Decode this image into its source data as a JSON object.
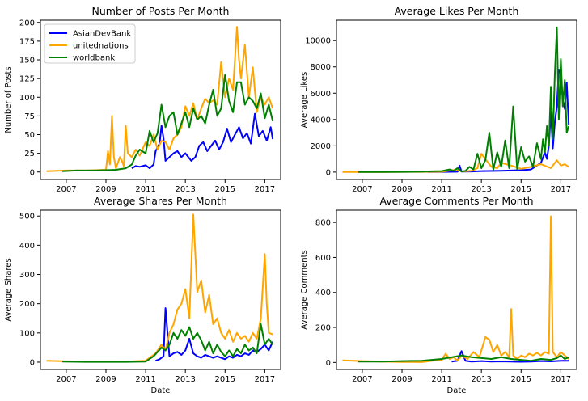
{
  "chart_data": [
    {
      "id": "posts",
      "type": "line",
      "title": "Number of Posts Per Month",
      "xlabel": "",
      "ylabel": "Number of Posts",
      "xlim": [
        2005.7,
        2017.8
      ],
      "ylim": [
        -10,
        203
      ],
      "xticks": [
        2007,
        2009,
        2011,
        2013,
        2015,
        2017
      ],
      "yticks": [
        0,
        25,
        50,
        75,
        100,
        125,
        150,
        175,
        200
      ],
      "legend": "top-left",
      "series": [
        {
          "name": "AsianDevBank",
          "color": "#0000ff",
          "x": [
            2010.3,
            2010.5,
            2010.7,
            2011.0,
            2011.2,
            2011.4,
            2011.5,
            2011.7,
            2011.8,
            2011.9,
            2012.0,
            2012.2,
            2012.4,
            2012.6,
            2012.8,
            2013.0,
            2013.3,
            2013.5,
            2013.7,
            2013.9,
            2014.1,
            2014.3,
            2014.5,
            2014.7,
            2014.9,
            2015.1,
            2015.3,
            2015.5,
            2015.7,
            2015.9,
            2016.1,
            2016.3,
            2016.5,
            2016.7,
            2016.9,
            2017.1,
            2017.3,
            2017.4
          ],
          "values": [
            5,
            8,
            7,
            9,
            5,
            10,
            28,
            38,
            62,
            45,
            15,
            20,
            25,
            28,
            20,
            25,
            15,
            20,
            35,
            40,
            28,
            35,
            42,
            30,
            40,
            58,
            40,
            50,
            60,
            45,
            52,
            38,
            78,
            48,
            55,
            42,
            60,
            44
          ]
        },
        {
          "name": "unitednations",
          "color": "#ffa500",
          "x": [
            2006.0,
            2007.0,
            2008.0,
            2009.0,
            2009.1,
            2009.2,
            2009.3,
            2009.4,
            2009.5,
            2009.6,
            2009.7,
            2009.8,
            2009.9,
            2010.0,
            2010.1,
            2010.3,
            2010.5,
            2010.7,
            2011.0,
            2011.2,
            2011.4,
            2011.6,
            2011.8,
            2012.0,
            2012.2,
            2012.4,
            2012.6,
            2012.8,
            2013.0,
            2013.2,
            2013.4,
            2013.6,
            2013.8,
            2014.0,
            2014.2,
            2014.4,
            2014.6,
            2014.8,
            2015.0,
            2015.2,
            2015.4,
            2015.6,
            2015.7,
            2015.8,
            2016.0,
            2016.2,
            2016.4,
            2016.6,
            2016.8,
            2017.0,
            2017.2,
            2017.4
          ],
          "values": [
            1,
            2,
            2,
            3,
            28,
            10,
            75,
            20,
            5,
            12,
            20,
            15,
            8,
            62,
            25,
            20,
            30,
            22,
            40,
            35,
            50,
            30,
            42,
            40,
            30,
            45,
            50,
            60,
            88,
            75,
            92,
            70,
            85,
            98,
            92,
            96,
            90,
            147,
            100,
            125,
            110,
            194,
            150,
            125,
            170,
            100,
            140,
            80,
            100,
            90,
            100,
            85
          ]
        },
        {
          "name": "worldbank",
          "color": "#008000",
          "x": [
            2006.8,
            2007.5,
            2008.5,
            2009.5,
            2010.0,
            2010.3,
            2010.5,
            2010.7,
            2011.0,
            2011.2,
            2011.4,
            2011.6,
            2011.8,
            2012.0,
            2012.2,
            2012.4,
            2012.6,
            2012.8,
            2013.0,
            2013.2,
            2013.4,
            2013.6,
            2013.8,
            2014.0,
            2014.2,
            2014.4,
            2014.6,
            2014.8,
            2015.0,
            2015.2,
            2015.4,
            2015.6,
            2015.8,
            2016.0,
            2016.2,
            2016.4,
            2016.6,
            2016.8,
            2017.0,
            2017.2,
            2017.4
          ],
          "values": [
            1,
            2,
            2,
            3,
            5,
            10,
            22,
            30,
            25,
            55,
            40,
            52,
            90,
            60,
            75,
            80,
            50,
            65,
            80,
            60,
            85,
            70,
            75,
            65,
            90,
            110,
            75,
            85,
            130,
            95,
            80,
            120,
            120,
            90,
            100,
            95,
            85,
            105,
            72,
            90,
            68
          ]
        }
      ]
    },
    {
      "id": "likes",
      "type": "line",
      "title": "Average Likes Per Month",
      "xlabel": "",
      "ylabel": "Average Likes",
      "xlim": [
        2005.7,
        2017.8
      ],
      "ylim": [
        -560,
        11550
      ],
      "xticks": [
        2007,
        2009,
        2011,
        2013,
        2015,
        2017
      ],
      "yticks": [
        0,
        2000,
        4000,
        6000,
        8000,
        10000
      ],
      "series": [
        {
          "name": "AsianDevBank",
          "color": "#0000ff",
          "x": [
            2010.3,
            2011.0,
            2011.8,
            2011.9,
            2012.0,
            2012.5,
            2013.0,
            2014.0,
            2015.0,
            2015.5,
            2016.0,
            2016.2,
            2016.3,
            2016.4,
            2016.5,
            2016.6,
            2016.7,
            2016.8,
            2016.9,
            2017.0,
            2017.1,
            2017.2,
            2017.3,
            2017.4
          ],
          "values": [
            10,
            20,
            30,
            500,
            40,
            50,
            80,
            100,
            150,
            200,
            700,
            1500,
            1000,
            2000,
            4600,
            1800,
            3800,
            5000,
            7800,
            7500,
            5500,
            4800,
            6800,
            3600
          ]
        },
        {
          "name": "unitednations",
          "color": "#ffa500",
          "x": [
            2006.0,
            2007.0,
            2008.0,
            2009.0,
            2010.0,
            2011.0,
            2011.8,
            2012.0,
            2012.5,
            2012.8,
            2013.0,
            2013.3,
            2013.5,
            2013.8,
            2014.0,
            2014.5,
            2015.0,
            2015.5,
            2016.0,
            2016.5,
            2016.8,
            2017.0,
            2017.2,
            2017.4
          ],
          "values": [
            5,
            5,
            10,
            15,
            20,
            30,
            200,
            50,
            100,
            300,
            1400,
            800,
            400,
            300,
            700,
            500,
            250,
            400,
            600,
            300,
            900,
            500,
            600,
            400
          ]
        },
        {
          "name": "worldbank",
          "color": "#008000",
          "x": [
            2006.8,
            2008.0,
            2009.0,
            2010.0,
            2010.5,
            2011.0,
            2011.4,
            2011.6,
            2011.8,
            2012.0,
            2012.2,
            2012.4,
            2012.6,
            2012.8,
            2013.0,
            2013.2,
            2013.4,
            2013.6,
            2013.8,
            2014.0,
            2014.2,
            2014.4,
            2014.6,
            2014.8,
            2015.0,
            2015.2,
            2015.4,
            2015.6,
            2015.8,
            2016.0,
            2016.1,
            2016.2,
            2016.3,
            2016.4,
            2016.5,
            2016.6,
            2016.7,
            2016.8,
            2016.9,
            2017.0,
            2017.1,
            2017.2,
            2017.3,
            2017.4
          ],
          "values": [
            10,
            10,
            15,
            30,
            60,
            80,
            200,
            100,
            300,
            50,
            100,
            400,
            200,
            1400,
            300,
            900,
            3000,
            200,
            1500,
            400,
            2400,
            300,
            5000,
            200,
            1900,
            800,
            1200,
            400,
            2200,
            1000,
            2500,
            1500,
            3500,
            2000,
            6500,
            2500,
            7500,
            11000,
            4000,
            8600,
            5000,
            7000,
            3000,
            3500
          ]
        }
      ]
    },
    {
      "id": "shares",
      "type": "line",
      "title": "Average Shares Per Month",
      "xlabel": "Date",
      "ylabel": "Average Shares",
      "xlim": [
        2005.7,
        2017.8
      ],
      "ylim": [
        -25,
        520
      ],
      "xticks": [
        2007,
        2009,
        2011,
        2013,
        2015,
        2017
      ],
      "yticks": [
        0,
        100,
        200,
        300,
        400,
        500
      ],
      "series": [
        {
          "name": "AsianDevBank",
          "color": "#0000ff",
          "x": [
            2011.5,
            2011.7,
            2011.9,
            2012.0,
            2012.2,
            2012.4,
            2012.6,
            2012.8,
            2013.0,
            2013.2,
            2013.4,
            2013.6,
            2013.8,
            2014.0,
            2014.2,
            2014.4,
            2014.6,
            2014.8,
            2015.0,
            2015.2,
            2015.4,
            2015.6,
            2015.8,
            2016.0,
            2016.2,
            2016.4,
            2016.6,
            2016.8,
            2017.0,
            2017.2,
            2017.4
          ],
          "values": [
            5,
            10,
            20,
            185,
            20,
            30,
            35,
            25,
            40,
            80,
            30,
            20,
            15,
            25,
            20,
            15,
            20,
            15,
            10,
            20,
            15,
            25,
            20,
            30,
            25,
            40,
            35,
            45,
            60,
            40,
            70
          ]
        },
        {
          "name": "unitednations",
          "color": "#ffa500",
          "x": [
            2006.0,
            2007.0,
            2008.0,
            2009.0,
            2010.0,
            2011.0,
            2011.5,
            2011.8,
            2012.0,
            2012.2,
            2012.4,
            2012.6,
            2012.8,
            2013.0,
            2013.2,
            2013.4,
            2013.6,
            2013.8,
            2014.0,
            2014.2,
            2014.4,
            2014.6,
            2014.8,
            2015.0,
            2015.2,
            2015.4,
            2015.6,
            2015.8,
            2016.0,
            2016.2,
            2016.4,
            2016.6,
            2016.8,
            2017.0,
            2017.1,
            2017.2,
            2017.4
          ],
          "values": [
            5,
            3,
            2,
            2,
            2,
            5,
            30,
            60,
            40,
            100,
            130,
            180,
            200,
            250,
            150,
            505,
            240,
            280,
            170,
            230,
            130,
            150,
            100,
            80,
            110,
            70,
            100,
            80,
            90,
            70,
            100,
            80,
            150,
            370,
            200,
            100,
            95
          ]
        },
        {
          "name": "worldbank",
          "color": "#008000",
          "x": [
            2006.8,
            2008.0,
            2009.0,
            2010.0,
            2011.0,
            2011.4,
            2011.8,
            2012.0,
            2012.2,
            2012.4,
            2012.6,
            2012.8,
            2013.0,
            2013.2,
            2013.4,
            2013.6,
            2013.8,
            2014.0,
            2014.2,
            2014.4,
            2014.6,
            2014.8,
            2015.0,
            2015.2,
            2015.4,
            2015.6,
            2015.8,
            2016.0,
            2016.2,
            2016.4,
            2016.6,
            2016.8,
            2017.0,
            2017.2,
            2017.4
          ],
          "values": [
            2,
            1,
            1,
            1,
            2,
            20,
            50,
            40,
            60,
            100,
            80,
            110,
            90,
            120,
            80,
            100,
            75,
            40,
            70,
            30,
            60,
            35,
            20,
            40,
            20,
            45,
            30,
            60,
            40,
            50,
            30,
            130,
            60,
            80,
            60
          ]
        }
      ]
    },
    {
      "id": "comments",
      "type": "line",
      "title": "Average Comments Per Month",
      "xlabel": "Date",
      "ylabel": "Average Comments",
      "xlim": [
        2005.7,
        2017.8
      ],
      "ylim": [
        -40,
        870
      ],
      "xticks": [
        2007,
        2009,
        2011,
        2013,
        2015,
        2017
      ],
      "yticks": [
        0,
        200,
        400,
        600,
        800
      ],
      "series": [
        {
          "name": "AsianDevBank",
          "color": "#0000ff",
          "x": [
            2011.5,
            2011.8,
            2012.0,
            2012.2,
            2012.5,
            2013.0,
            2013.5,
            2014.0,
            2014.5,
            2015.0,
            2015.5,
            2016.0,
            2016.5,
            2017.0,
            2017.4
          ],
          "values": [
            5,
            10,
            65,
            10,
            5,
            8,
            5,
            6,
            5,
            4,
            5,
            8,
            6,
            10,
            10
          ]
        },
        {
          "name": "unitednations",
          "color": "#ffa500",
          "x": [
            2006.0,
            2007.0,
            2008.0,
            2009.0,
            2010.0,
            2010.5,
            2011.0,
            2011.2,
            2011.4,
            2011.6,
            2011.8,
            2012.0,
            2012.3,
            2012.6,
            2012.9,
            2013.2,
            2013.4,
            2013.6,
            2013.8,
            2014.0,
            2014.2,
            2014.4,
            2014.5,
            2014.6,
            2014.8,
            2015.0,
            2015.2,
            2015.4,
            2015.6,
            2015.8,
            2016.0,
            2016.2,
            2016.4,
            2016.5,
            2016.6,
            2016.8,
            2017.0,
            2017.2,
            2017.4
          ],
          "values": [
            12,
            8,
            5,
            3,
            2,
            10,
            15,
            50,
            20,
            30,
            10,
            40,
            20,
            60,
            30,
            145,
            130,
            60,
            100,
            40,
            60,
            30,
            305,
            40,
            20,
            40,
            30,
            50,
            40,
            55,
            40,
            60,
            50,
            835,
            60,
            30,
            60,
            40,
            20
          ]
        },
        {
          "name": "worldbank",
          "color": "#008000",
          "x": [
            2006.8,
            2008.0,
            2009.0,
            2010.0,
            2011.0,
            2011.5,
            2012.0,
            2012.5,
            2013.0,
            2013.5,
            2014.0,
            2014.5,
            2015.0,
            2015.5,
            2016.0,
            2016.5,
            2016.8,
            2017.0,
            2017.2,
            2017.4
          ],
          "values": [
            5,
            5,
            8,
            10,
            20,
            30,
            40,
            30,
            25,
            20,
            30,
            20,
            15,
            10,
            20,
            15,
            25,
            40,
            20,
            30
          ]
        }
      ]
    }
  ]
}
